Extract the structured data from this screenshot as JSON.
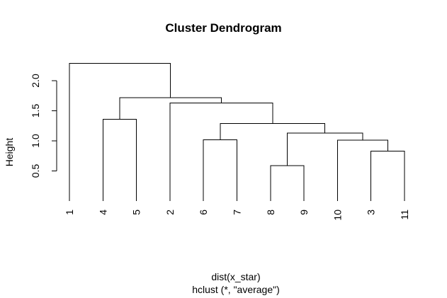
{
  "chart_data": {
    "type": "dendrogram",
    "title": "Cluster Dendrogram",
    "ylabel": "Height",
    "xlabel": "dist(x_star)",
    "sublabel": "hclust (*, \"average\")",
    "leaves": [
      "1",
      "4",
      "5",
      "2",
      "6",
      "7",
      "8",
      "9",
      "10",
      "3",
      "11"
    ],
    "y_ticks": [
      0.5,
      1.0,
      1.5,
      2.0
    ],
    "y_tick_labels": [
      "0.5",
      "1.0",
      "1.5",
      "2.0"
    ],
    "ylim": [
      0,
      2.35
    ],
    "merges": [
      {
        "left": "8",
        "right": "9",
        "height": 0.59
      },
      {
        "left": "3",
        "right": "11",
        "height": 0.83
      },
      {
        "left": "6",
        "right": "7",
        "height": 1.02
      },
      {
        "left": "10",
        "right": "(3,11)",
        "height": 1.01
      },
      {
        "left": "(8,9)",
        "right": "(10,(3,11))",
        "height": 1.13
      },
      {
        "left": "(6,7)",
        "right": "((8,9),(10,(3,11)))",
        "height": 1.29
      },
      {
        "left": "4",
        "right": "5",
        "height": 1.36
      },
      {
        "left": "2",
        "right": "((6,7),...)",
        "height": 1.63
      },
      {
        "left": "(4,5)",
        "right": "(2,...)",
        "height": 1.72
      },
      {
        "left": "1",
        "right": "((4,5),...)",
        "height": 2.29
      }
    ]
  }
}
